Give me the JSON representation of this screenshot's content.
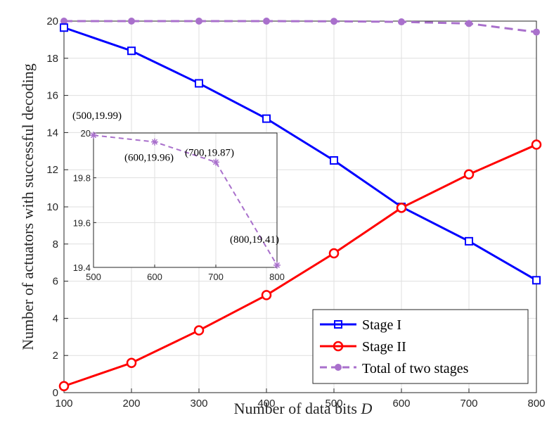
{
  "chart_data": [
    {
      "type": "line",
      "xlabel_text": "Number of data bits ",
      "xlabel_var": "D",
      "ylabel": "Number of actuators with successful decoding",
      "x": [
        100,
        200,
        300,
        400,
        500,
        600,
        700,
        800
      ],
      "xlim": [
        100,
        800
      ],
      "ylim": [
        0,
        20
      ],
      "xticks": [
        "100",
        "200",
        "300",
        "400",
        "500",
        "600",
        "700",
        "800"
      ],
      "yticks": [
        "0",
        "2",
        "4",
        "6",
        "8",
        "10",
        "12",
        "14",
        "16",
        "18",
        "20"
      ],
      "grid": true,
      "legend_position": "bottom-right",
      "series": [
        {
          "name": "Stage I",
          "color": "#0000ff",
          "style": "solid",
          "marker": "square",
          "values": [
            19.65,
            18.4,
            16.65,
            14.75,
            12.5,
            10.0,
            8.15,
            6.05
          ]
        },
        {
          "name": "Stage II",
          "color": "#ff0000",
          "style": "solid",
          "marker": "circle",
          "values": [
            0.35,
            1.6,
            3.35,
            5.25,
            7.5,
            9.95,
            11.75,
            13.35
          ]
        },
        {
          "name": "Total of two stages",
          "color": "#a970cc",
          "style": "dashed",
          "marker": "dot",
          "values": [
            20.0,
            20.0,
            20.0,
            20.0,
            19.99,
            19.96,
            19.87,
            19.41
          ]
        }
      ]
    },
    {
      "type": "line",
      "x": [
        500,
        600,
        700,
        800
      ],
      "xlim": [
        500,
        800
      ],
      "ylim": [
        19.4,
        20.0
      ],
      "xticks": [
        "500",
        "600",
        "700",
        "800"
      ],
      "yticks": [
        "19.4",
        "19.6",
        "19.8",
        "20"
      ],
      "grid": true,
      "series": [
        {
          "color": "#a970cc",
          "style": "dashed",
          "marker": "asterisk",
          "values": [
            19.99,
            19.96,
            19.87,
            19.41
          ]
        }
      ],
      "annotations": [
        "(500,19.99)",
        "(600,19.96)",
        "(700,19.87)",
        "(800,19.41)"
      ]
    }
  ]
}
